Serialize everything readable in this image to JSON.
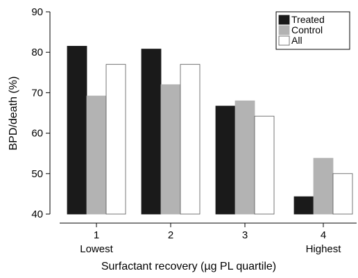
{
  "chart_data": {
    "type": "bar",
    "categories": [
      "1",
      "2",
      "3",
      "4"
    ],
    "category_sublabels": [
      "Lowest",
      "",
      "",
      "Highest"
    ],
    "series": [
      {
        "name": "Treated",
        "values": [
          81.5,
          80.8,
          66.7,
          44.3
        ],
        "color": "#1a1a1a"
      },
      {
        "name": "Control",
        "values": [
          69.2,
          72.0,
          68.0,
          53.8
        ],
        "color": "#b3b3b3"
      },
      {
        "name": "All",
        "values": [
          77.0,
          77.0,
          64.2,
          50.0
        ],
        "color": "#ffffff"
      }
    ],
    "xlabel": "Surfactant recovery (µg PL quartile)",
    "ylabel": "BPD/death (%)",
    "ylim": [
      40,
      90
    ],
    "yticks": [
      40,
      50,
      60,
      70,
      80,
      90
    ],
    "grid": false,
    "legend_position": "top-right"
  }
}
